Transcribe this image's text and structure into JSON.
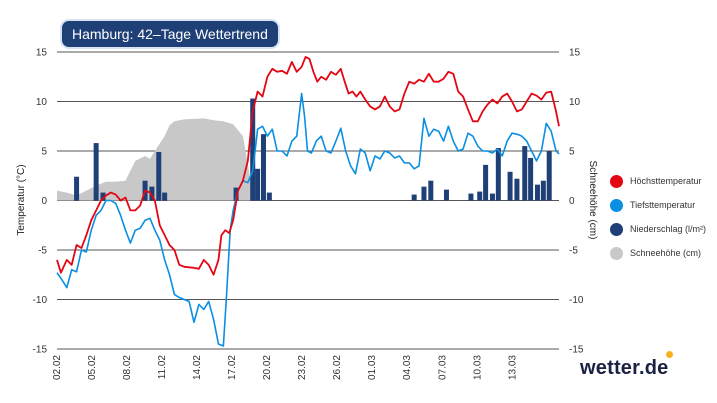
{
  "title": "Hamburg: 42–Tage Wettertrend",
  "brand": "wetter.de",
  "chart_data": {
    "type": "line",
    "title": "Hamburg: 42–Tage Wettertrend",
    "ylabel": "Temperatur (°C)",
    "y2label": "Schneehöhe (cm)",
    "ylim": [
      -15,
      15
    ],
    "y2lim": [
      -15,
      15
    ],
    "yticks": [
      15,
      10,
      5,
      0,
      -5,
      -10,
      -15
    ],
    "x_start": "02.02",
    "x_end": "16.03",
    "xtick_labels": [
      "02.02",
      "05.02",
      "08.02",
      "11.02",
      "14.02",
      "17.02",
      "20.02",
      "23.02",
      "26.02",
      "01.03",
      "04.03",
      "07.03",
      "10.03",
      "13.03"
    ],
    "series": [
      {
        "name": "Höchsttemperatur",
        "color": "#e30613",
        "type": "line",
        "points": [
          [
            0,
            -6
          ],
          [
            0.4,
            -7.3
          ],
          [
            1,
            -6
          ],
          [
            1.5,
            -6.5
          ],
          [
            2,
            -4.5
          ],
          [
            2.5,
            -4.8
          ],
          [
            3,
            -3.5
          ],
          [
            3.5,
            -2
          ],
          [
            4,
            -1
          ],
          [
            4.5,
            0
          ],
          [
            5,
            0.5
          ],
          [
            5.5,
            0.8
          ],
          [
            6,
            0.6
          ],
          [
            6.5,
            0
          ],
          [
            7,
            0.3
          ],
          [
            7.5,
            -1
          ],
          [
            8,
            -1
          ],
          [
            8.5,
            -0.5
          ],
          [
            9,
            1
          ],
          [
            9.5,
            0.8
          ],
          [
            10,
            0
          ],
          [
            10.5,
            -2.5
          ],
          [
            11,
            -3.5
          ],
          [
            11.5,
            -4.5
          ],
          [
            12,
            -5
          ],
          [
            12.5,
            -6.5
          ],
          [
            13,
            -6.7
          ],
          [
            14,
            -6.8
          ],
          [
            14.5,
            -6.9
          ],
          [
            15,
            -6
          ],
          [
            15.5,
            -6.5
          ],
          [
            16,
            -7.5
          ],
          [
            16.5,
            -6
          ],
          [
            16.8,
            -3.5
          ],
          [
            17.2,
            -3
          ],
          [
            17.6,
            -3.3
          ],
          [
            18,
            -2
          ],
          [
            18.5,
            1
          ],
          [
            19,
            2
          ],
          [
            19.5,
            4
          ],
          [
            19.8,
            7
          ],
          [
            20,
            9
          ],
          [
            20.5,
            11
          ],
          [
            21,
            10.5
          ],
          [
            21.5,
            12.5
          ],
          [
            22,
            13.3
          ],
          [
            22.5,
            13
          ],
          [
            23,
            13.1
          ],
          [
            23.5,
            12.8
          ],
          [
            24,
            14
          ],
          [
            24.5,
            13
          ],
          [
            25,
            13.5
          ],
          [
            25.4,
            14.5
          ],
          [
            25.8,
            14.3
          ],
          [
            26.2,
            13
          ],
          [
            26.6,
            12
          ],
          [
            27,
            12.5
          ],
          [
            27.5,
            12.2
          ],
          [
            28,
            13
          ],
          [
            28.5,
            12.7
          ],
          [
            29,
            13.3
          ],
          [
            29.4,
            12
          ],
          [
            29.8,
            10.8
          ],
          [
            30.2,
            11
          ],
          [
            30.6,
            10.5
          ],
          [
            31,
            11
          ],
          [
            31.5,
            10.2
          ],
          [
            32,
            9.5
          ],
          [
            32.5,
            9.2
          ],
          [
            33,
            9.5
          ],
          [
            33.5,
            10.5
          ],
          [
            34,
            9.5
          ],
          [
            34.5,
            9
          ],
          [
            35,
            9.2
          ],
          [
            35.5,
            10.8
          ],
          [
            36,
            12
          ],
          [
            36.5,
            11.8
          ],
          [
            37,
            12.2
          ],
          [
            37.5,
            12
          ],
          [
            38,
            12.8
          ],
          [
            38.5,
            12
          ],
          [
            39,
            12
          ],
          [
            39.5,
            12.3
          ],
          [
            40,
            13
          ],
          [
            40.5,
            12.8
          ],
          [
            41,
            11
          ],
          [
            41.5,
            10.5
          ],
          [
            42,
            9.2
          ],
          [
            42.5,
            8
          ],
          [
            43,
            8
          ],
          [
            43.5,
            9
          ],
          [
            44,
            9.7
          ],
          [
            44.5,
            10.2
          ],
          [
            45,
            9.8
          ],
          [
            45.5,
            10.5
          ],
          [
            46,
            10.8
          ],
          [
            46.5,
            10
          ],
          [
            47,
            9
          ],
          [
            47.5,
            9.2
          ],
          [
            48,
            10
          ],
          [
            48.5,
            10.8
          ],
          [
            49,
            10.6
          ],
          [
            49.5,
            10.2
          ],
          [
            50,
            10.9
          ],
          [
            50.5,
            11
          ],
          [
            51,
            9
          ],
          [
            51.3,
            7.5
          ]
        ]
      },
      {
        "name": "Tiefsttemperatur",
        "color": "#0a8fe3",
        "type": "line",
        "points": [
          [
            0,
            -7.3
          ],
          [
            0.5,
            -8
          ],
          [
            1,
            -8.8
          ],
          [
            1.5,
            -7
          ],
          [
            2,
            -7.2
          ],
          [
            2.5,
            -5
          ],
          [
            3,
            -5.2
          ],
          [
            3.5,
            -3
          ],
          [
            4,
            -1.5
          ],
          [
            4.5,
            -1
          ],
          [
            5,
            0
          ],
          [
            5.5,
            0
          ],
          [
            6,
            -0.3
          ],
          [
            6.5,
            -1.5
          ],
          [
            7,
            -3
          ],
          [
            7.5,
            -4.3
          ],
          [
            8,
            -3
          ],
          [
            8.5,
            -2.8
          ],
          [
            9,
            -2
          ],
          [
            9.5,
            -1.8
          ],
          [
            10,
            -3
          ],
          [
            10.5,
            -4
          ],
          [
            11,
            -6
          ],
          [
            11.5,
            -7.5
          ],
          [
            12,
            -9.5
          ],
          [
            12.5,
            -9.8
          ],
          [
            13,
            -10
          ],
          [
            13.5,
            -10.2
          ],
          [
            14,
            -12.3
          ],
          [
            14.5,
            -10.5
          ],
          [
            15,
            -11
          ],
          [
            15.5,
            -10.2
          ],
          [
            16,
            -12
          ],
          [
            16.5,
            -14.5
          ],
          [
            17,
            -14.7
          ],
          [
            17.3,
            -10
          ],
          [
            17.7,
            -3
          ],
          [
            18,
            -1
          ],
          [
            18.5,
            1
          ],
          [
            19,
            2
          ],
          [
            19.5,
            1.8
          ],
          [
            20,
            3
          ],
          [
            20.5,
            7.2
          ],
          [
            21,
            7.5
          ],
          [
            21.5,
            6.5
          ],
          [
            22,
            7.2
          ],
          [
            22.5,
            5
          ],
          [
            23,
            5
          ],
          [
            23.5,
            4.5
          ],
          [
            24,
            6
          ],
          [
            24.5,
            6.5
          ],
          [
            25,
            10.8
          ],
          [
            25.3,
            8.5
          ],
          [
            25.6,
            5
          ],
          [
            26,
            4.8
          ],
          [
            26.5,
            6
          ],
          [
            27,
            6.5
          ],
          [
            27.5,
            5
          ],
          [
            28,
            4.8
          ],
          [
            28.5,
            6
          ],
          [
            29,
            7.3
          ],
          [
            29.5,
            5
          ],
          [
            30,
            3.5
          ],
          [
            30.5,
            2.7
          ],
          [
            31,
            5.2
          ],
          [
            31.5,
            4.8
          ],
          [
            32,
            3
          ],
          [
            32.5,
            4.5
          ],
          [
            33,
            4.2
          ],
          [
            33.5,
            5
          ],
          [
            34,
            4.8
          ],
          [
            34.5,
            4.3
          ],
          [
            35,
            4.5
          ],
          [
            35.5,
            3.8
          ],
          [
            36,
            3.8
          ],
          [
            36.5,
            3.2
          ],
          [
            37,
            3.5
          ],
          [
            37.5,
            8.3
          ],
          [
            38,
            6.5
          ],
          [
            38.5,
            7.2
          ],
          [
            39,
            7
          ],
          [
            39.5,
            6
          ],
          [
            40,
            7.5
          ],
          [
            40.5,
            6
          ],
          [
            41,
            5
          ],
          [
            41.5,
            5.2
          ],
          [
            42,
            6.8
          ],
          [
            42.5,
            6.5
          ],
          [
            43,
            5.5
          ],
          [
            43.5,
            5
          ],
          [
            44,
            5
          ],
          [
            44.5,
            4.8
          ],
          [
            45,
            5.2
          ],
          [
            45.5,
            4.5
          ],
          [
            46,
            6
          ],
          [
            46.5,
            6.8
          ],
          [
            47,
            6.7
          ],
          [
            47.5,
            6.5
          ],
          [
            48,
            6
          ],
          [
            48.5,
            5
          ],
          [
            49,
            4
          ],
          [
            49.5,
            5
          ],
          [
            50,
            7.8
          ],
          [
            50.5,
            7
          ],
          [
            51,
            5
          ],
          [
            51.3,
            4.7
          ]
        ]
      },
      {
        "name": "Niederschlag (l/m²)",
        "color": "#1f3f77",
        "type": "bar",
        "points": [
          [
            2,
            2.4
          ],
          [
            4,
            5.8
          ],
          [
            4.7,
            0.8
          ],
          [
            9,
            2
          ],
          [
            9.7,
            1.4
          ],
          [
            10.4,
            4.9
          ],
          [
            11,
            0.8
          ],
          [
            18.3,
            1.3
          ],
          [
            20,
            10.3
          ],
          [
            20.5,
            3.2
          ],
          [
            21.1,
            6.7
          ],
          [
            21.7,
            0.8
          ],
          [
            36.5,
            0.6
          ],
          [
            37.5,
            1.4
          ],
          [
            38.2,
            2
          ],
          [
            39.8,
            1.1
          ],
          [
            42.3,
            0.7
          ],
          [
            43.2,
            0.9
          ],
          [
            43.8,
            3.6
          ],
          [
            44.5,
            0.7
          ],
          [
            45.1,
            5.3
          ],
          [
            46.3,
            2.9
          ],
          [
            47,
            2.2
          ],
          [
            47.8,
            5.5
          ],
          [
            48.4,
            4.3
          ],
          [
            49.1,
            1.6
          ],
          [
            49.7,
            2
          ],
          [
            50.3,
            5
          ]
        ]
      },
      {
        "name": "Schneehöhe (cm)",
        "color": "#c8c8c8",
        "type": "area",
        "points": [
          [
            0,
            1
          ],
          [
            1,
            0.8
          ],
          [
            2,
            0.5
          ],
          [
            3,
            1
          ],
          [
            4,
            1.5
          ],
          [
            5,
            1.9
          ],
          [
            6,
            1.9
          ],
          [
            7,
            2
          ],
          [
            8,
            4
          ],
          [
            9,
            4.5
          ],
          [
            9.5,
            4.2
          ],
          [
            10,
            5
          ],
          [
            11,
            6.5
          ],
          [
            11.5,
            7.6
          ],
          [
            12,
            8
          ],
          [
            13,
            8.2
          ],
          [
            15,
            8.3
          ],
          [
            16,
            8.1
          ],
          [
            17,
            8
          ],
          [
            18,
            7.7
          ],
          [
            19,
            6.5
          ],
          [
            20,
            0.8
          ],
          [
            20.5,
            0
          ]
        ]
      }
    ]
  },
  "legend": [
    {
      "label": "Höchsttemperatur",
      "color": "#e30613"
    },
    {
      "label": "Tiefsttemperatur",
      "color": "#0a8fe3"
    },
    {
      "label": "Niederschlag (l/m²)",
      "color": "#1f3f77"
    },
    {
      "label": "Schneehöhe (cm)",
      "color": "#c8c8c8"
    }
  ]
}
